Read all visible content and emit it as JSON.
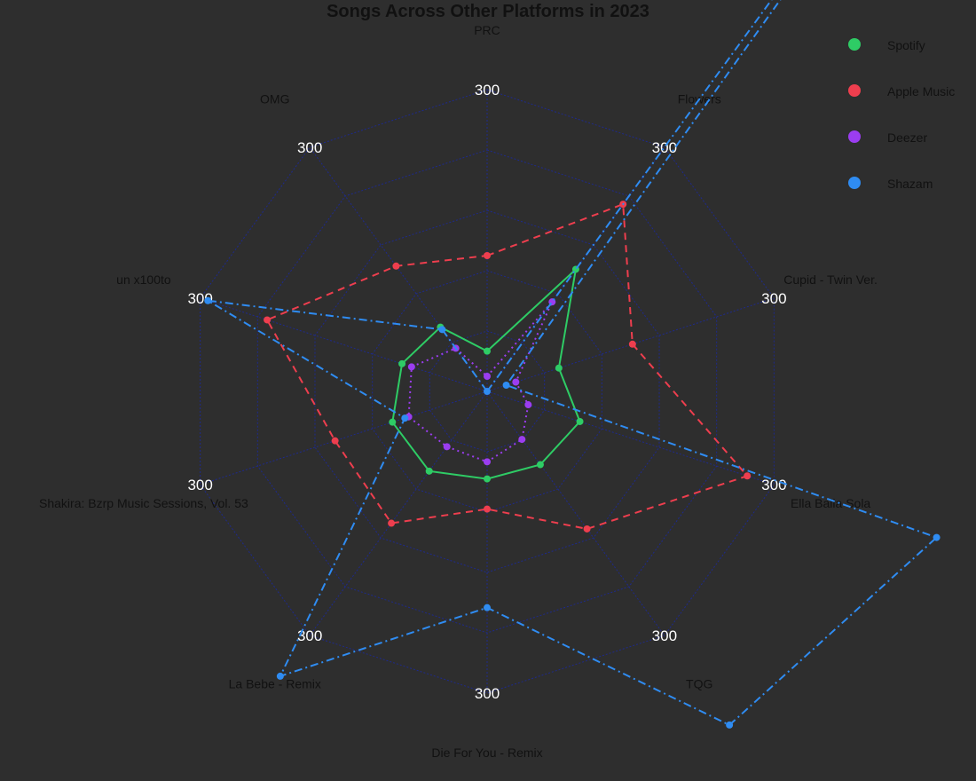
{
  "chart_data": {
    "type": "radar",
    "title": "Songs Across Other Platforms in 2023",
    "axes": [
      "PRC",
      "Flowers",
      "Cupid - Twin Ver.",
      "Ella Baila Sola",
      "TQG",
      "Die For You - Remix",
      "La Bebe - Remix",
      "Shakira: Bzrp Music Sessions, Vol. 53",
      "un x100to",
      "OMG"
    ],
    "tick_label": "300",
    "rmax": 300,
    "grid_levels": 5,
    "legend_position": "top-right",
    "series": [
      {
        "name": "Spotify",
        "color": "#2ecc65",
        "dash": "solid",
        "values": [
          40,
          150,
          75,
          97,
          90,
          87,
          98,
          99,
          89,
          79
        ]
      },
      {
        "name": "Apple Music",
        "color": "#ee3e4e",
        "dash": "dashed",
        "values": [
          135,
          230,
          152,
          272,
          169,
          117,
          162,
          159,
          230,
          154
        ]
      },
      {
        "name": "Deezer",
        "color": "#9b3df0",
        "dash": "dotted",
        "values": [
          15,
          110,
          30,
          43,
          59,
          70,
          68,
          82,
          79,
          53
        ]
      },
      {
        "name": "Shazam",
        "color": "#2f8cf2",
        "dash": "dashdot",
        "values": [
          0,
          1180,
          20,
          470,
          410,
          215,
          350,
          86,
          292,
          76
        ]
      }
    ]
  }
}
